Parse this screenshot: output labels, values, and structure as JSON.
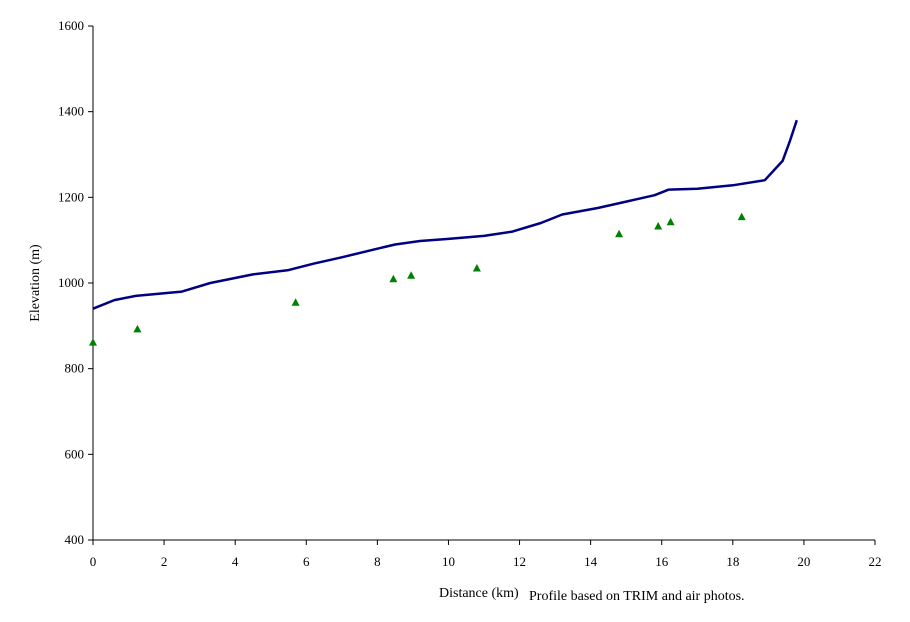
{
  "chart_data": {
    "type": "line",
    "title": "",
    "xlabel": "Distance (km)",
    "ylabel": "Elevation (m)",
    "note": "Profile based on TRIM and air photos.",
    "xlim": [
      0,
      22
    ],
    "ylim": [
      400,
      1600
    ],
    "xticks": [
      0,
      2,
      4,
      6,
      8,
      10,
      12,
      14,
      16,
      18,
      20,
      22
    ],
    "yticks": [
      400,
      600,
      800,
      1000,
      1200,
      1400,
      1600
    ],
    "grid": false,
    "legend": "none",
    "series": [
      {
        "kind": "line",
        "color": "#000080",
        "x": [
          0,
          0.6,
          1.2,
          2.5,
          3.3,
          4.5,
          5.5,
          6.2,
          7.0,
          8.0,
          8.5,
          9.2,
          10.0,
          11.0,
          11.8,
          12.6,
          13.2,
          14.2,
          15.0,
          15.8,
          16.2,
          17.0,
          18.0,
          18.9,
          19.4,
          19.6,
          19.8
        ],
        "y": [
          940,
          960,
          970,
          980,
          1000,
          1020,
          1030,
          1045,
          1060,
          1080,
          1090,
          1098,
          1103,
          1110,
          1120,
          1140,
          1160,
          1175,
          1190,
          1205,
          1218,
          1220,
          1228,
          1240,
          1285,
          1330,
          1380
        ]
      },
      {
        "kind": "scatter",
        "color": "#008000",
        "marker": "triangle",
        "x": [
          0.0,
          1.25,
          5.7,
          8.45,
          8.95,
          10.8,
          14.8,
          15.9,
          16.25,
          18.25
        ],
        "y": [
          862,
          893,
          955,
          1010,
          1018,
          1035,
          1115,
          1133,
          1143,
          1155
        ]
      }
    ]
  }
}
